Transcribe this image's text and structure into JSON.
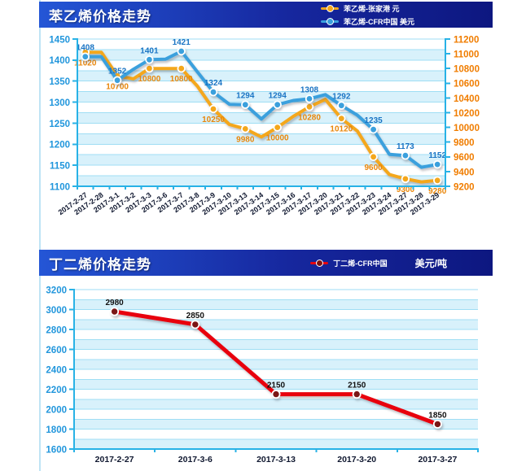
{
  "colors": {
    "header_gradient": [
      "#2456d6",
      "#16279e",
      "#0d1780"
    ],
    "axis": "#28b2e6",
    "grid": "#9fdef4",
    "stripe": "#d8f1fb",
    "date_label": "#101830"
  },
  "chart_data": [
    {
      "type": "line",
      "title": "苯乙烯价格走势",
      "legend_position": "header-right",
      "categories": [
        "2017-2-27",
        "2017-2-28",
        "2017-3-1",
        "2017-3-2",
        "2017-3-3",
        "2017-3-6",
        "2017-3-7",
        "2017-3-8",
        "2017-3-9",
        "2017-3-10",
        "2017-3-13",
        "2017-3-14",
        "2017-3-15",
        "2017-3-16",
        "2017-3-17",
        "2017-3-20",
        "2017-3-21",
        "2017-3-22",
        "2017-3-23",
        "2017-3-24",
        "2017-3-27",
        "2017-3-28",
        "2017-3-29"
      ],
      "series": [
        {
          "name": "苯乙烯-张家港 元",
          "axis": "right",
          "color": "#f4a71c",
          "label_color": "#e8860a",
          "label_side": "below",
          "marker_every": 2,
          "values": [
            11020,
            11020,
            10700,
            10660,
            10800,
            10800,
            10800,
            10560,
            10250,
            10040,
            9980,
            9870,
            10000,
            10150,
            10280,
            10380,
            10120,
            9950,
            9600,
            9360,
            9300,
            9260,
            9280
          ],
          "labeled_values": [
            11020,
            10700,
            10800,
            10800,
            10250,
            9980,
            10000,
            10280,
            10120,
            9600,
            9300,
            9280
          ]
        },
        {
          "name": "苯乙烯-CFR中国 美元",
          "axis": "left",
          "color": "#3aa0dd",
          "label_color": "#1a74c4",
          "label_side": "above",
          "marker_every": 2,
          "values": [
            1408,
            1408,
            1352,
            1378,
            1401,
            1402,
            1421,
            1372,
            1324,
            1295,
            1294,
            1260,
            1294,
            1304,
            1308,
            1318,
            1292,
            1269,
            1235,
            1176,
            1173,
            1145,
            1152
          ],
          "labeled_values": [
            1408,
            1352,
            1401,
            1421,
            1324,
            1294,
            1294,
            1308,
            1292,
            1235,
            1173,
            1152
          ]
        }
      ],
      "axes": {
        "left": {
          "min": 1100,
          "max": 1450,
          "step": 50,
          "minor_step": 25,
          "color": "#2196dc"
        },
        "right": {
          "min": 9200,
          "max": 11200,
          "step": 200,
          "minor_step": 200,
          "color": "#f07d00"
        }
      },
      "x_label_rotate": -35,
      "grid": true,
      "plot_background": "striped"
    },
    {
      "type": "line",
      "title": "丁二烯价格走势",
      "legend_position": "header-right",
      "unit_label": "美元/吨",
      "categories": [
        "2017-2-27",
        "2017-3-6",
        "2017-3-13",
        "2017-3-20",
        "2017-3-27"
      ],
      "series": [
        {
          "name": "丁二烯-CFR中国",
          "axis": "left",
          "color": "#e8050f",
          "marker_color": "#7a1212",
          "label_color": "#111111",
          "label_side": "above",
          "marker_every": 1,
          "values": [
            2980,
            2850,
            2150,
            2150,
            1850
          ]
        }
      ],
      "axes": {
        "left": {
          "min": 1600,
          "max": 3200,
          "step": 200,
          "minor_step": 100,
          "color": "#2196dc"
        }
      },
      "x_label_rotate": 0,
      "grid": true,
      "plot_background": "striped"
    }
  ]
}
